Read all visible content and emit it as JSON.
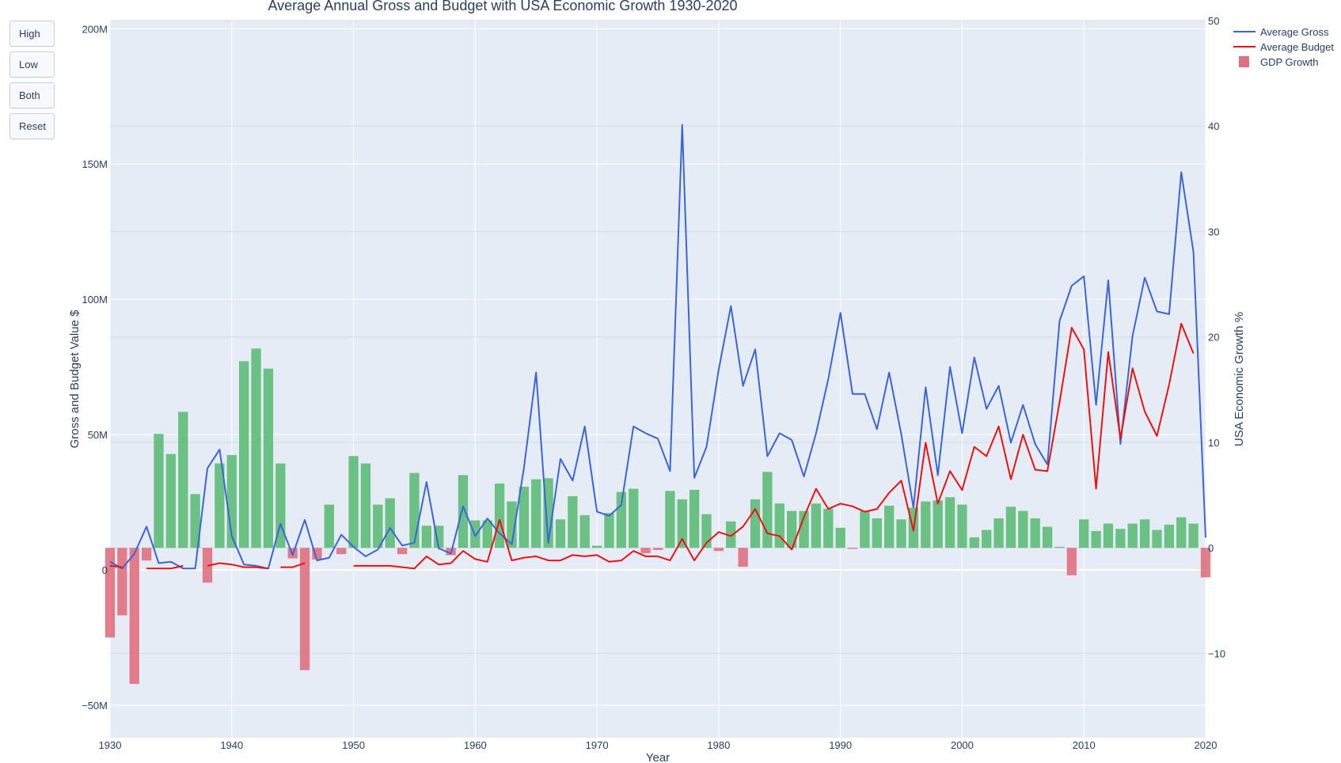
{
  "buttons": [
    "High",
    "Low",
    "Both",
    "Reset"
  ],
  "colors": {
    "gross": "#3b65d8",
    "budget": "#ee1111",
    "gdp_pos": "#5dbb78",
    "gdp_neg": "#e0707e",
    "plot_bg": "#e5ecf6",
    "grid": "#ffffff"
  },
  "chart_data": {
    "type": "bar+line",
    "title": "Average Annual Gross and Budget with USA Economic Growth 1930-2020",
    "xlabel": "Year",
    "ylabel": "Gross and Budget Value $",
    "y2label": "USA Economic Growth %",
    "xlim": [
      1930,
      2020
    ],
    "ylim": [
      -62000000,
      203000000
    ],
    "y2lim": [
      -18,
      50
    ],
    "x_ticks": [
      "1930",
      "1940",
      "1950",
      "1960",
      "1970",
      "1980",
      "1990",
      "2000",
      "2010",
      "2020"
    ],
    "y_ticks": [
      {
        "v": -50000000,
        "label": "−50M"
      },
      {
        "v": 0,
        "label": "0"
      },
      {
        "v": 50000000,
        "label": "50M"
      },
      {
        "v": 100000000,
        "label": "100M"
      },
      {
        "v": 150000000,
        "label": "150M"
      },
      {
        "v": 200000000,
        "label": "200M"
      }
    ],
    "y2_ticks": [
      {
        "v": -10,
        "label": "−10"
      },
      {
        "v": 0,
        "label": "0"
      },
      {
        "v": 10,
        "label": "10"
      },
      {
        "v": 20,
        "label": "20"
      },
      {
        "v": 30,
        "label": "30"
      },
      {
        "v": 40,
        "label": "40"
      },
      {
        "v": 50,
        "label": "50"
      }
    ],
    "legend_position": "top-right",
    "grid": true,
    "series": [
      {
        "name": "Average Gross",
        "type": "line",
        "axis": "y",
        "x": [
          1930,
          1931,
          1932,
          1933,
          1934,
          1935,
          1936,
          1937,
          1938,
          1939,
          1940,
          1941,
          1942,
          1943,
          1944,
          1945,
          1946,
          1947,
          1948,
          1949,
          1950,
          1951,
          1952,
          1953,
          1954,
          1955,
          1956,
          1957,
          1958,
          1959,
          1960,
          1961,
          1962,
          1963,
          1964,
          1965,
          1966,
          1967,
          1968,
          1969,
          1970,
          1971,
          1972,
          1973,
          1974,
          1975,
          1976,
          1977,
          1978,
          1979,
          1980,
          1981,
          1982,
          1983,
          1984,
          1985,
          1986,
          1987,
          1988,
          1989,
          1990,
          1991,
          1992,
          1993,
          1994,
          1995,
          1996,
          1997,
          1998,
          1999,
          2000,
          2001,
          2002,
          2003,
          2004,
          2005,
          2006,
          2007,
          2008,
          2009,
          2010,
          2011,
          2012,
          2013,
          2014,
          2015,
          2016,
          2017,
          2018,
          2019,
          2020
        ],
        "values": [
          3000000,
          500000,
          6000000,
          16000000,
          2500000,
          3000000,
          500000,
          500000,
          37500000,
          44500000,
          12500000,
          2000000,
          1500000,
          500000,
          17000000,
          5500000,
          18500000,
          3500000,
          4500000,
          13000000,
          8500000,
          5000000,
          7500000,
          15500000,
          9000000,
          10000000,
          32500000,
          8000000,
          6000000,
          23500000,
          12500000,
          19000000,
          13500000,
          9500000,
          37500000,
          73000000,
          10000000,
          41000000,
          33000000,
          53000000,
          21500000,
          20000000,
          24000000,
          53000000,
          50500000,
          48500000,
          36500000,
          164500000,
          34000000,
          45500000,
          74000000,
          97500000,
          68000000,
          81500000,
          42000000,
          50500000,
          48000000,
          34500000,
          50500000,
          70500000,
          95000000,
          65000000,
          65000000,
          52000000,
          73000000,
          50000000,
          23000000,
          67500000,
          35000000,
          75000000,
          50500000,
          78500000,
          59500000,
          68000000,
          47000000,
          61000000,
          46500000,
          39000000,
          92000000,
          105000000,
          108500000,
          61000000,
          107000000,
          46500000,
          86500000,
          108000000,
          95500000,
          94500000,
          147000000,
          117500000,
          12000000
        ]
      },
      {
        "name": "Average Budget",
        "type": "line",
        "axis": "y",
        "x": [
          1930,
          1931,
          null,
          1933,
          1934,
          1935,
          1936,
          null,
          1938,
          1939,
          1940,
          1941,
          1942,
          1943,
          null,
          1944,
          1945,
          1946,
          null,
          1950,
          1951,
          1952,
          1953,
          1954,
          1955,
          1956,
          1957,
          1958,
          1959,
          1960,
          1961,
          1962,
          1963,
          1964,
          1965,
          1966,
          1967,
          1968,
          1969,
          1970,
          1971,
          1972,
          1973,
          1974,
          1975,
          1976,
          1977,
          1978,
          1979,
          1980,
          1981,
          1982,
          1983,
          1984,
          1985,
          1986,
          1987,
          1988,
          1989,
          1990,
          1991,
          1992,
          1993,
          1994,
          1995,
          1996,
          1997,
          1998,
          1999,
          2000,
          2001,
          2002,
          2003,
          2004,
          2005,
          2006,
          2007,
          2008,
          2009,
          2010,
          2011,
          2012,
          2013,
          2014,
          2015,
          2016,
          2017,
          2018,
          2019
        ],
        "values": [
          1500000,
          1000000,
          null,
          500000,
          500000,
          500000,
          1500000,
          null,
          1500000,
          2500000,
          2000000,
          1000000,
          1000000,
          500000,
          null,
          1000000,
          1000000,
          2500000,
          null,
          1500000,
          1500000,
          1500000,
          1500000,
          1000000,
          500000,
          5000000,
          2000000,
          2500000,
          7000000,
          4000000,
          3000000,
          18500000,
          3500000,
          4500000,
          5000000,
          3500000,
          3500000,
          5500000,
          5000000,
          5500000,
          3000000,
          3500000,
          7000000,
          5000000,
          5000000,
          3500000,
          11500000,
          3500000,
          10000000,
          14000000,
          12500000,
          16000000,
          22500000,
          13500000,
          12500000,
          7500000,
          19500000,
          30000000,
          22500000,
          24500000,
          23500000,
          21500000,
          22500000,
          28500000,
          33000000,
          14500000,
          47000000,
          24500000,
          36500000,
          29500000,
          45500000,
          42000000,
          53000000,
          33500000,
          50000000,
          37000000,
          36500000,
          62000000,
          89500000,
          81500000,
          30000000,
          80500000,
          48500000,
          74500000,
          58500000,
          49500000,
          68500000,
          91000000,
          80000000
        ]
      },
      {
        "name": "GDP Growth",
        "type": "bar",
        "axis": "y2",
        "x": [
          1930,
          1931,
          1932,
          1933,
          1934,
          1935,
          1936,
          1937,
          1938,
          1939,
          1940,
          1941,
          1942,
          1943,
          1944,
          1945,
          1946,
          1947,
          1948,
          1949,
          1950,
          1951,
          1952,
          1953,
          1954,
          1955,
          1956,
          1957,
          1958,
          1959,
          1960,
          1961,
          1962,
          1963,
          1964,
          1965,
          1966,
          1967,
          1968,
          1969,
          1970,
          1971,
          1972,
          1973,
          1974,
          1975,
          1976,
          1977,
          1978,
          1979,
          1980,
          1981,
          1982,
          1983,
          1984,
          1985,
          1986,
          1987,
          1988,
          1989,
          1990,
          1991,
          1992,
          1993,
          1994,
          1995,
          1996,
          1997,
          1998,
          1999,
          2000,
          2001,
          2002,
          2003,
          2004,
          2005,
          2006,
          2007,
          2008,
          2009,
          2010,
          2011,
          2012,
          2013,
          2014,
          2015,
          2016,
          2017,
          2018,
          2019,
          2020
        ],
        "values": [
          -8.5,
          -6.4,
          -12.9,
          -1.2,
          10.8,
          8.9,
          12.9,
          5.1,
          -3.3,
          8.0,
          8.8,
          17.7,
          18.9,
          17.0,
          8.0,
          -1.0,
          -11.6,
          -1.1,
          4.1,
          -0.6,
          8.7,
          8.0,
          4.1,
          4.7,
          -0.6,
          7.1,
          2.1,
          2.1,
          -0.7,
          6.9,
          2.6,
          2.6,
          6.1,
          4.4,
          5.8,
          6.5,
          6.6,
          2.7,
          4.9,
          3.1,
          0.2,
          3.3,
          5.3,
          5.6,
          -0.5,
          -0.2,
          5.4,
          4.6,
          5.5,
          3.2,
          -0.3,
          2.5,
          -1.8,
          4.6,
          7.2,
          4.2,
          3.5,
          3.5,
          4.2,
          3.7,
          1.9,
          -0.1,
          3.5,
          2.8,
          4.0,
          2.7,
          3.8,
          4.4,
          4.5,
          4.8,
          4.1,
          1.0,
          1.7,
          2.8,
          3.9,
          3.5,
          2.8,
          2.0,
          0.1,
          -2.6,
          2.7,
          1.6,
          2.3,
          1.8,
          2.3,
          2.7,
          1.7,
          2.2,
          2.9,
          2.3,
          -2.8
        ]
      }
    ]
  }
}
